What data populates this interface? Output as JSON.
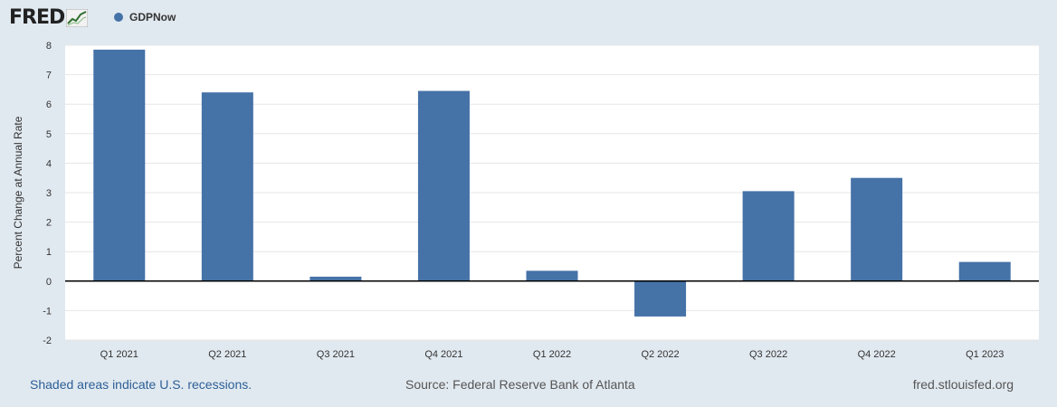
{
  "header": {
    "logo_text": "FRED",
    "logo_icon": "line-chart-icon",
    "legend_label": "GDPNow"
  },
  "colors": {
    "series": "#4572a7",
    "background": "#e1e9f0",
    "plot_bg": "#ffffff",
    "grid": "#e6e6e6",
    "zero_line": "#000000"
  },
  "chart_data": {
    "type": "bar",
    "title": "",
    "xlabel": "",
    "ylabel": "Percent Change at Annual Rate",
    "ylim": [
      -2,
      8
    ],
    "yticks": [
      -2,
      -1,
      0,
      1,
      2,
      3,
      4,
      5,
      6,
      7,
      8
    ],
    "grid": true,
    "categories": [
      "Q1 2021",
      "Q2 2021",
      "Q3 2021",
      "Q4 2021",
      "Q1 2022",
      "Q2 2022",
      "Q3 2022",
      "Q4 2022",
      "Q1 2023"
    ],
    "series": [
      {
        "name": "GDPNow",
        "values": [
          7.85,
          6.4,
          0.15,
          6.45,
          0.35,
          -1.2,
          3.05,
          3.5,
          0.65
        ]
      }
    ]
  },
  "footer": {
    "recession_note": "Shaded areas indicate U.S. recessions.",
    "source": "Source: Federal Reserve Bank of Atlanta",
    "site": "fred.stlouisfed.org"
  }
}
